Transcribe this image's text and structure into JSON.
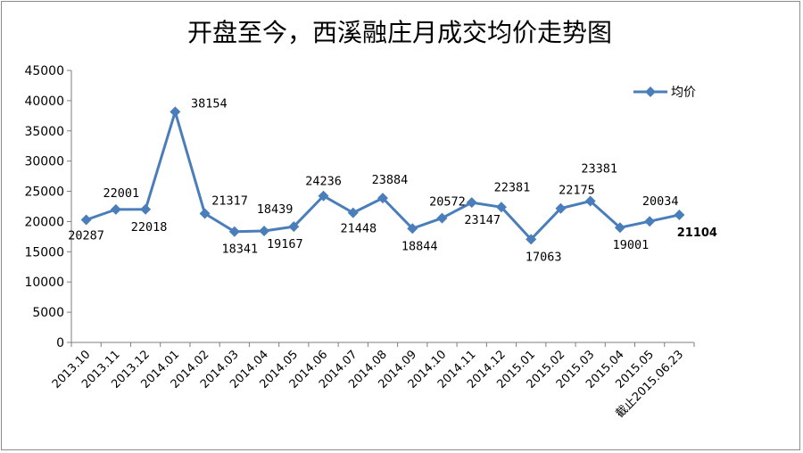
{
  "chart_data": {
    "type": "line",
    "title": "开盘至今，西溪融庄月成交均价走势图",
    "xlabel": "",
    "ylabel": "",
    "ylim": [
      0,
      45000
    ],
    "yticks": [
      0,
      5000,
      10000,
      15000,
      20000,
      25000,
      30000,
      35000,
      40000,
      45000
    ],
    "grid": false,
    "legend_position": "top-right",
    "line_color": "#4a7ebb",
    "categories": [
      "2013.10",
      "2013.11",
      "2013.12",
      "2014.01",
      "2014.02",
      "2014.03",
      "2014.04",
      "2014.05",
      "2014.06",
      "2014.07",
      "2014.08",
      "2014.09",
      "2014.10",
      "2014.11",
      "2014.12",
      "2015.01",
      "2015.02",
      "2015.03",
      "2015.04",
      "2015.05",
      "截止2015.06.23"
    ],
    "series": [
      {
        "name": "均价",
        "values": [
          20287,
          22001,
          22018,
          38154,
          21317,
          18341,
          18439,
          19167,
          24236,
          21448,
          23884,
          18844,
          20572,
          23147,
          22381,
          17063,
          22175,
          23381,
          19001,
          20034,
          21104
        ]
      }
    ]
  }
}
